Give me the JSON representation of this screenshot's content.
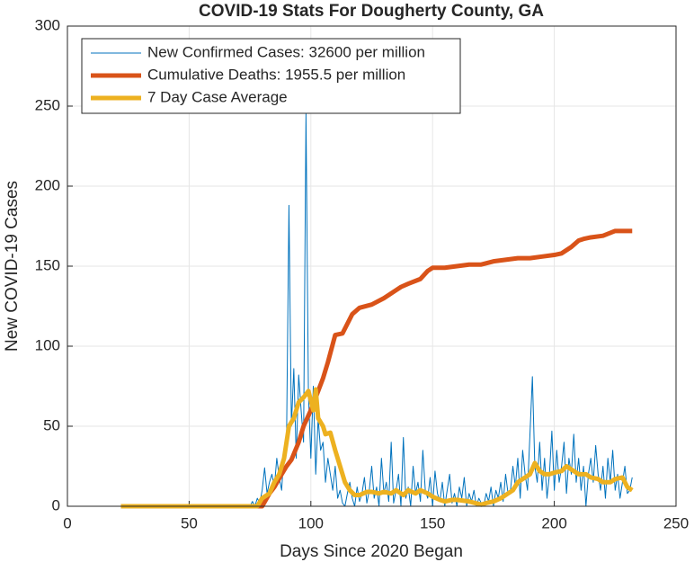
{
  "chart_data": {
    "type": "line",
    "title": "COVID-19 Stats For Dougherty County, GA",
    "xlabel": "Days Since 2020 Began",
    "ylabel": "New COVID-19 Cases",
    "xlim": [
      0,
      250
    ],
    "xticks": [
      0,
      50,
      100,
      150,
      200,
      250
    ],
    "ylim": [
      0,
      300
    ],
    "yticks": [
      0,
      50,
      100,
      150,
      200,
      250,
      300
    ],
    "grid": true,
    "legend": "upper-left",
    "series": [
      {
        "name": "New Confirmed Cases: 32600 per million",
        "color": "#0072BD",
        "width": 1,
        "x": [
          22,
          75,
          76,
          77,
          78,
          79,
          80,
          81,
          82,
          83,
          84,
          85,
          86,
          87,
          88,
          89,
          90,
          91,
          92,
          93,
          94,
          95,
          96,
          97,
          98,
          99,
          100,
          101,
          102,
          103,
          104,
          105,
          106,
          107,
          108,
          109,
          110,
          111,
          112,
          113,
          114,
          115,
          116,
          117,
          118,
          119,
          120,
          121,
          122,
          123,
          124,
          125,
          126,
          127,
          128,
          129,
          130,
          131,
          132,
          133,
          134,
          135,
          136,
          137,
          138,
          139,
          140,
          141,
          142,
          143,
          144,
          145,
          146,
          147,
          148,
          149,
          150,
          151,
          152,
          153,
          154,
          155,
          156,
          157,
          158,
          159,
          160,
          161,
          162,
          163,
          164,
          165,
          166,
          167,
          168,
          169,
          170,
          171,
          172,
          173,
          174,
          175,
          176,
          177,
          178,
          179,
          180,
          181,
          182,
          183,
          184,
          185,
          186,
          187,
          188,
          189,
          190,
          191,
          192,
          193,
          194,
          195,
          196,
          197,
          198,
          199,
          200,
          201,
          202,
          203,
          204,
          205,
          206,
          207,
          208,
          209,
          210,
          211,
          212,
          213,
          214,
          215,
          216,
          217,
          218,
          219,
          220,
          221,
          222,
          223,
          224,
          225,
          226,
          227,
          228,
          229,
          230,
          231,
          232
        ],
        "values": [
          0,
          0,
          3,
          0,
          5,
          2,
          10,
          24,
          8,
          15,
          20,
          12,
          30,
          18,
          10,
          35,
          40,
          188,
          50,
          86,
          30,
          82,
          60,
          40,
          245,
          70,
          30,
          75,
          20,
          55,
          35,
          40,
          15,
          30,
          20,
          10,
          25,
          5,
          10,
          2,
          0,
          8,
          15,
          5,
          0,
          12,
          3,
          8,
          18,
          2,
          10,
          25,
          5,
          12,
          0,
          30,
          8,
          15,
          3,
          40,
          2,
          10,
          20,
          0,
          43,
          5,
          12,
          0,
          25,
          8,
          15,
          3,
          35,
          10,
          5,
          18,
          0,
          22,
          8,
          3,
          15,
          0,
          10,
          20,
          2,
          8,
          0,
          12,
          5,
          18,
          0,
          8,
          3,
          10,
          0,
          5,
          2,
          0,
          8,
          3,
          12,
          0,
          10,
          5,
          15,
          3,
          20,
          8,
          10,
          25,
          12,
          30,
          5,
          35,
          20,
          10,
          45,
          81,
          25,
          15,
          40,
          10,
          30,
          5,
          20,
          47,
          10,
          35,
          15,
          25,
          40,
          8,
          30,
          20,
          45,
          15,
          30,
          10,
          25,
          0,
          20,
          30,
          15,
          38,
          20,
          10,
          25,
          5,
          30,
          15,
          35,
          10,
          20,
          5,
          15,
          25,
          8,
          10,
          18
        ]
      },
      {
        "name": "Cumulative Deaths: 1955.5 per million",
        "color": "#D95319",
        "width": 5,
        "x": [
          22,
          80,
          83,
          85,
          88,
          90,
          92,
          95,
          97,
          100,
          103,
          105,
          107,
          110,
          113,
          117,
          120,
          125,
          130,
          135,
          137,
          140,
          145,
          148,
          150,
          155,
          160,
          165,
          170,
          175,
          180,
          185,
          190,
          195,
          200,
          203,
          207,
          210,
          212,
          215,
          220,
          225,
          232
        ],
        "values": [
          0,
          0,
          8,
          12,
          20,
          25,
          29,
          40,
          50,
          60,
          72,
          80,
          90,
          107,
          108,
          120,
          124,
          126,
          130,
          135,
          137,
          139,
          142,
          147,
          149,
          149,
          150,
          151,
          151,
          153,
          154,
          155,
          155,
          156,
          157,
          158,
          162,
          166,
          167,
          168,
          169,
          172,
          172
        ]
      },
      {
        "name": "7 Day Case Average",
        "color": "#EDB120",
        "width": 5,
        "x": [
          22,
          78,
          80,
          83,
          85,
          87,
          89,
          91,
          93,
          95,
          97,
          99,
          101,
          102,
          103,
          105,
          106,
          108,
          110,
          112,
          114,
          116,
          118,
          120,
          123,
          125,
          128,
          130,
          133,
          135,
          138,
          140,
          143,
          145,
          148,
          150,
          153,
          155,
          158,
          160,
          165,
          170,
          172,
          175,
          178,
          180,
          183,
          185,
          188,
          190,
          192,
          194,
          196,
          198,
          200,
          203,
          205,
          208,
          210,
          213,
          215,
          218,
          220,
          223,
          225,
          228,
          230,
          232
        ],
        "values": [
          0,
          0,
          5,
          8,
          15,
          20,
          30,
          50,
          55,
          65,
          68,
          72,
          60,
          73,
          55,
          50,
          45,
          46,
          35,
          25,
          15,
          10,
          7,
          7,
          9,
          9,
          8,
          9,
          8,
          10,
          7,
          10,
          8,
          10,
          8,
          6,
          4,
          3,
          4,
          4,
          3,
          1,
          2,
          3,
          5,
          7,
          10,
          15,
          18,
          20,
          27,
          22,
          20,
          20,
          21,
          22,
          25,
          22,
          20,
          20,
          18,
          17,
          15,
          15,
          17,
          18,
          12,
          10
        ]
      }
    ]
  }
}
